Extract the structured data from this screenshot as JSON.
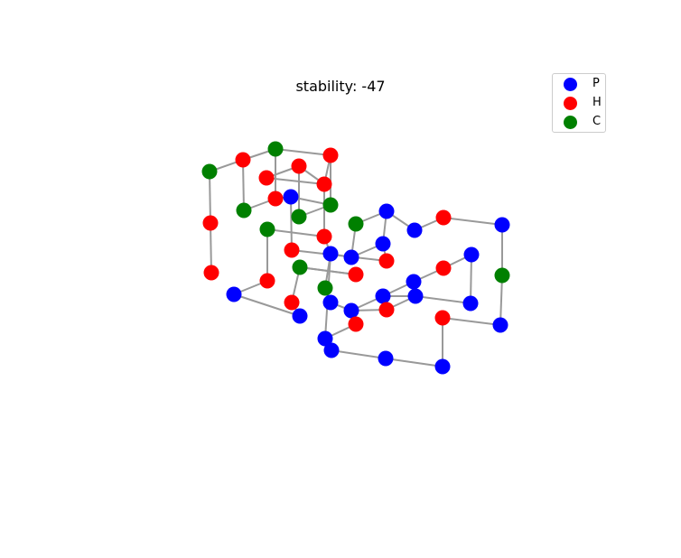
{
  "title": "stability: -47",
  "legend": [
    {
      "label": "P",
      "color": "#0000ff"
    },
    {
      "label": "H",
      "color": "#ff0000"
    },
    {
      "label": "C",
      "color": "#008000"
    }
  ],
  "colors": {
    "P": "#0000ff",
    "H": "#ff0000",
    "C": "#008000",
    "edge": "#999999"
  },
  "chart_data": {
    "type": "3d-lattice-protein-graph",
    "title": "stability: -47",
    "legend_placement": "top-right",
    "residue_types": [
      "P",
      "H",
      "C"
    ],
    "node_count": 52,
    "grid": false
  }
}
